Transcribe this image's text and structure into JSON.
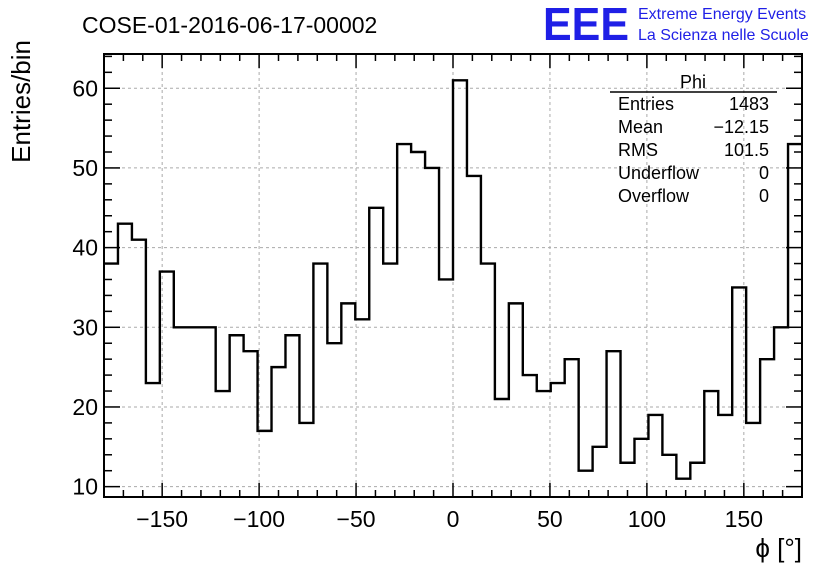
{
  "chart_data": {
    "type": "bar",
    "title": "COSE-01-2016-06-17-00002",
    "xlabel": "ϕ [°]",
    "ylabel": "Entries/bin",
    "xlim": [
      -180,
      180
    ],
    "ylim": [
      8.7,
      64.3
    ],
    "bin_width": 7.2,
    "x_ticks": [
      -150,
      -100,
      -50,
      0,
      50,
      100,
      150
    ],
    "x_tick_labels": [
      "−150",
      "−100",
      "−50",
      "0",
      "50",
      "100",
      "150"
    ],
    "y_ticks": [
      10,
      20,
      30,
      40,
      50,
      60
    ],
    "y_tick_labels": [
      "10",
      "20",
      "30",
      "40",
      "50",
      "60"
    ],
    "grid": true,
    "values": [
      38,
      43,
      41,
      23,
      37,
      30,
      30,
      30,
      22,
      29,
      27,
      17,
      25,
      29,
      18,
      38,
      28,
      33,
      31,
      45,
      38,
      53,
      52,
      50,
      36,
      61,
      49,
      38,
      21,
      33,
      24,
      22,
      23,
      26,
      12,
      15,
      27,
      13,
      16,
      19,
      14,
      11,
      13,
      22,
      19,
      35,
      18,
      26,
      30,
      53
    ]
  },
  "stats_box": {
    "title": "Phi",
    "rows": [
      {
        "label": "Entries",
        "value": "1483"
      },
      {
        "label": "Mean",
        "value": "−12.15"
      },
      {
        "label": "RMS",
        "value": "101.5"
      },
      {
        "label": "Underflow",
        "value": "0"
      },
      {
        "label": "Overflow",
        "value": "0"
      }
    ]
  },
  "logo": {
    "mark": "EEE",
    "line1": "Extreme Energy Events",
    "line2": "La Scienza nelle Scuole",
    "color": "#1f1fe6"
  }
}
